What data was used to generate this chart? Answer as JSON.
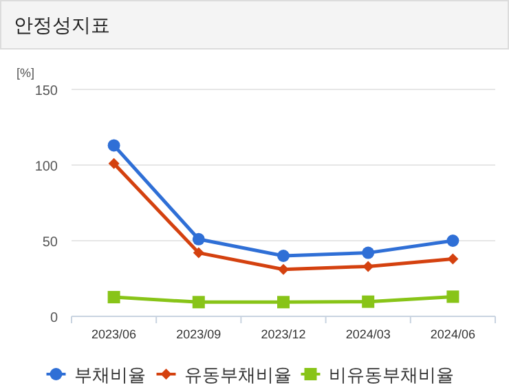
{
  "chart_data": {
    "type": "line",
    "title": "안정성지표",
    "ylabel": "[%]",
    "categories": [
      "2023/06",
      "2023/09",
      "2023/12",
      "2024/03",
      "2024/06"
    ],
    "series": [
      {
        "name": "부채비율",
        "color": "#2f6fd6",
        "marker": "circle",
        "values": [
          113,
          51,
          40,
          42,
          50
        ]
      },
      {
        "name": "유동부채비율",
        "color": "#d4410f",
        "marker": "diamond",
        "values": [
          101,
          42,
          31,
          33,
          38
        ]
      },
      {
        "name": "비유동부채비율",
        "color": "#88c418",
        "marker": "square",
        "values": [
          12.7,
          9.4,
          9.4,
          9.7,
          13
        ]
      }
    ],
    "ylim": [
      0,
      150
    ],
    "yticks": [
      0,
      50,
      100,
      150
    ],
    "grid": "y",
    "legend": "bottom"
  }
}
